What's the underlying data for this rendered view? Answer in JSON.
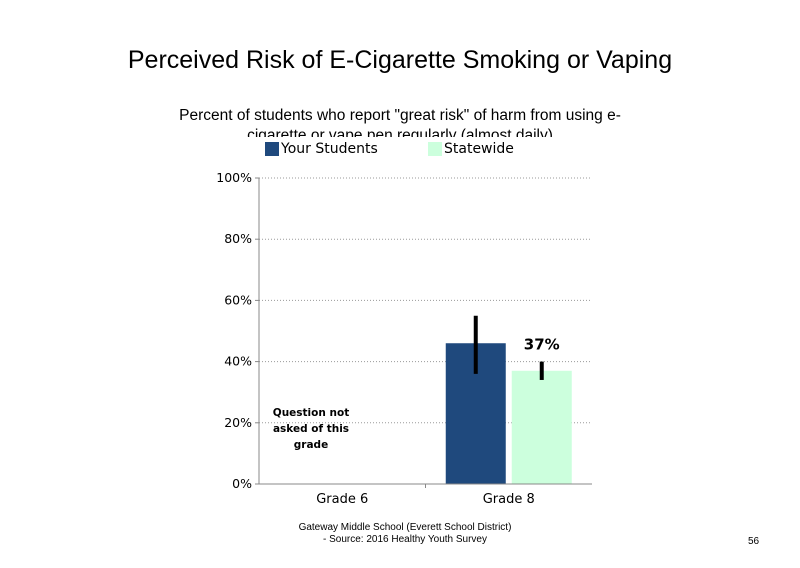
{
  "chart_data": {
    "type": "bar",
    "title": "Perceived Risk of E-Cigarette Smoking or Vaping",
    "subtitle": "Percent of students who report \"great risk\" of harm from using e-cigarette or vape pen regularly (almost daily)",
    "categories": [
      "Grade 6",
      "Grade 8"
    ],
    "series": [
      {
        "name": "Your Students",
        "color": "#1f497d",
        "values": [
          null,
          46
        ],
        "error_low": [
          null,
          36
        ],
        "error_high": [
          null,
          55
        ]
      },
      {
        "name": "Statewide",
        "color": "#ccffdd",
        "values": [
          null,
          37
        ],
        "error_low": [
          null,
          34
        ],
        "error_high": [
          null,
          40
        ]
      }
    ],
    "data_labels": [
      "",
      "46%",
      "",
      "37%"
    ],
    "y_ticks": [
      "0%",
      "20%",
      "40%",
      "60%",
      "80%",
      "100%"
    ],
    "ylim": [
      0,
      100
    ],
    "grid": true,
    "legend_position": "top",
    "annotation": "Question not asked of this grade"
  },
  "footer": {
    "line1": "Gateway Middle School (Everett School District)",
    "line2": "- Source: 2016 Healthy Youth Survey"
  },
  "page_number": "56"
}
